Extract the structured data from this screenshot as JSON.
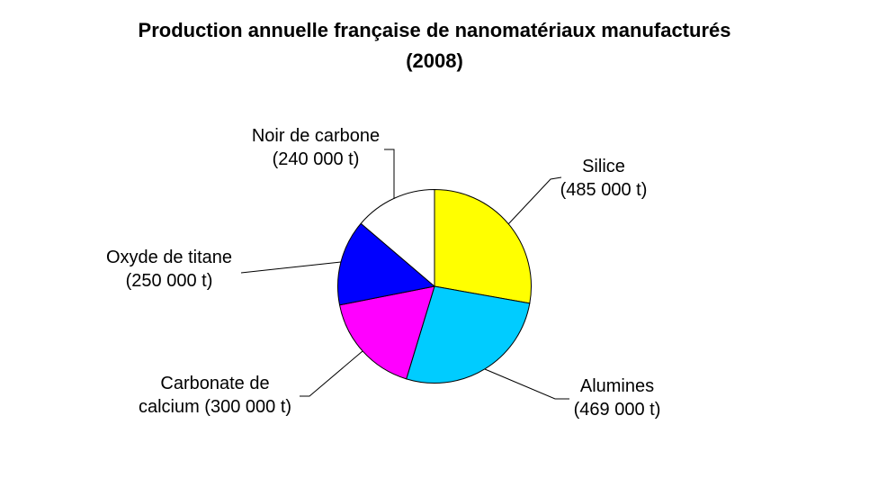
{
  "title": {
    "line1": "Production annuelle française de nanomatériaux manufacturés",
    "line2": "(2008)"
  },
  "chart_data": {
    "type": "pie",
    "title": "Production annuelle française de nanomatériaux manufacturés (2008)",
    "unit": "t",
    "direction": "clockwise",
    "start_angle_deg_from_top": 0,
    "outline_color": "#000000",
    "slices": [
      {
        "id": "silice",
        "name": "Silice",
        "value": 485000,
        "color": "#ffff00",
        "label_line1": "Silice",
        "label_line2": "(485 000 t)"
      },
      {
        "id": "alumines",
        "name": "Alumines",
        "value": 469000,
        "color": "#00ccff",
        "label_line1": "Alumines",
        "label_line2": "(469 000 t)"
      },
      {
        "id": "carbonate-de-calcium",
        "name": "Carbonate de calcium",
        "value": 300000,
        "color": "#ff00ff",
        "label_line1": "Carbonate de",
        "label_line2": "calcium (300 000 t)"
      },
      {
        "id": "oxyde-de-titane",
        "name": "Oxyde de titane",
        "value": 250000,
        "color": "#0000ff",
        "label_line1": "Oxyde de titane",
        "label_line2": "(250 000 t)"
      },
      {
        "id": "noir-de-carbone",
        "name": "Noir de carbone",
        "value": 240000,
        "color": "#ffffff",
        "label_line1": "Noir de carbone",
        "label_line2": "(240 000 t)"
      }
    ]
  }
}
